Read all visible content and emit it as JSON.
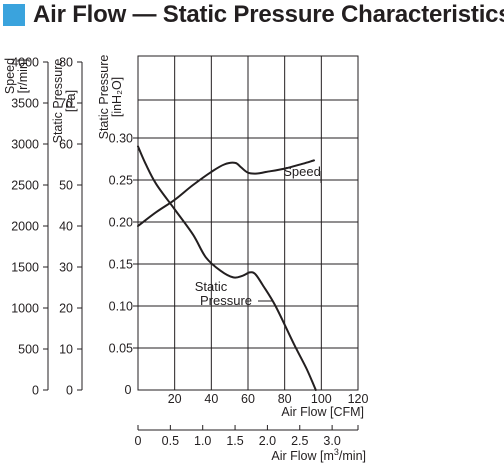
{
  "title": "Air Flow — Static Pressure Characteristics",
  "colors": {
    "accent": "#3aa3dd",
    "ink": "#231f20",
    "plot_bg": "#ffffff"
  },
  "chart_data": {
    "type": "line",
    "title": "Air Flow — Static Pressure Characteristics",
    "grid": true,
    "x_axis_cfm": {
      "label": "Air Flow [CFM]",
      "range": [
        0,
        120
      ],
      "ticks": [
        "20",
        "40",
        "60",
        "80",
        "100",
        "120"
      ]
    },
    "x_axis_m3min": {
      "label": "Air Flow [m³/min]",
      "label_base": "Air Flow [m",
      "label_sup": "3",
      "label_tail": "/min]",
      "range": [
        0,
        3.4
      ],
      "ticks": [
        "0",
        "0.5",
        "1.0",
        "1.5",
        "2.0",
        "2.5",
        "3.0"
      ]
    },
    "origin_label": "0",
    "y_axis_speed": {
      "label_line1": "Speed",
      "label_line2": "[r/min]",
      "range": [
        0,
        4000
      ],
      "ticks": [
        "0",
        "500",
        "1000",
        "1500",
        "2000",
        "2500",
        "3000",
        "3500",
        "4000"
      ]
    },
    "y_axis_pa": {
      "label_line1": "Static Pressure",
      "label_line2": "[Pa]",
      "range": [
        0,
        80
      ],
      "ticks": [
        "0",
        "10",
        "20",
        "30",
        "40",
        "50",
        "60",
        "70",
        "80"
      ]
    },
    "y_axis_inh2o": {
      "label_line1": "Static Pressure",
      "label_line2": "[inH₂O]",
      "range": [
        0,
        0.3
      ],
      "ticks": [
        "0.05",
        "0.10",
        "0.15",
        "0.20",
        "0.25",
        "0.30"
      ]
    },
    "series": [
      {
        "name": "Speed",
        "axis": "speed",
        "x": [
          0,
          10,
          20,
          30,
          40,
          47,
          53,
          56,
          60,
          65,
          70,
          80,
          90,
          96
        ],
        "y": [
          2000,
          2170,
          2320,
          2500,
          2660,
          2750,
          2770,
          2720,
          2650,
          2640,
          2660,
          2700,
          2760,
          2800
        ]
      },
      {
        "name": "Static Pressure",
        "name_line1": "Static",
        "name_line2": "Pressure",
        "axis": "inh2o",
        "x": [
          0,
          4,
          10,
          20,
          30,
          37,
          45,
          52,
          57,
          61,
          64,
          68,
          75,
          85,
          92,
          97
        ],
        "y": [
          0.29,
          0.27,
          0.245,
          0.215,
          0.185,
          0.158,
          0.142,
          0.134,
          0.136,
          0.14,
          0.138,
          0.125,
          0.1,
          0.055,
          0.025,
          0.0
        ]
      }
    ]
  }
}
